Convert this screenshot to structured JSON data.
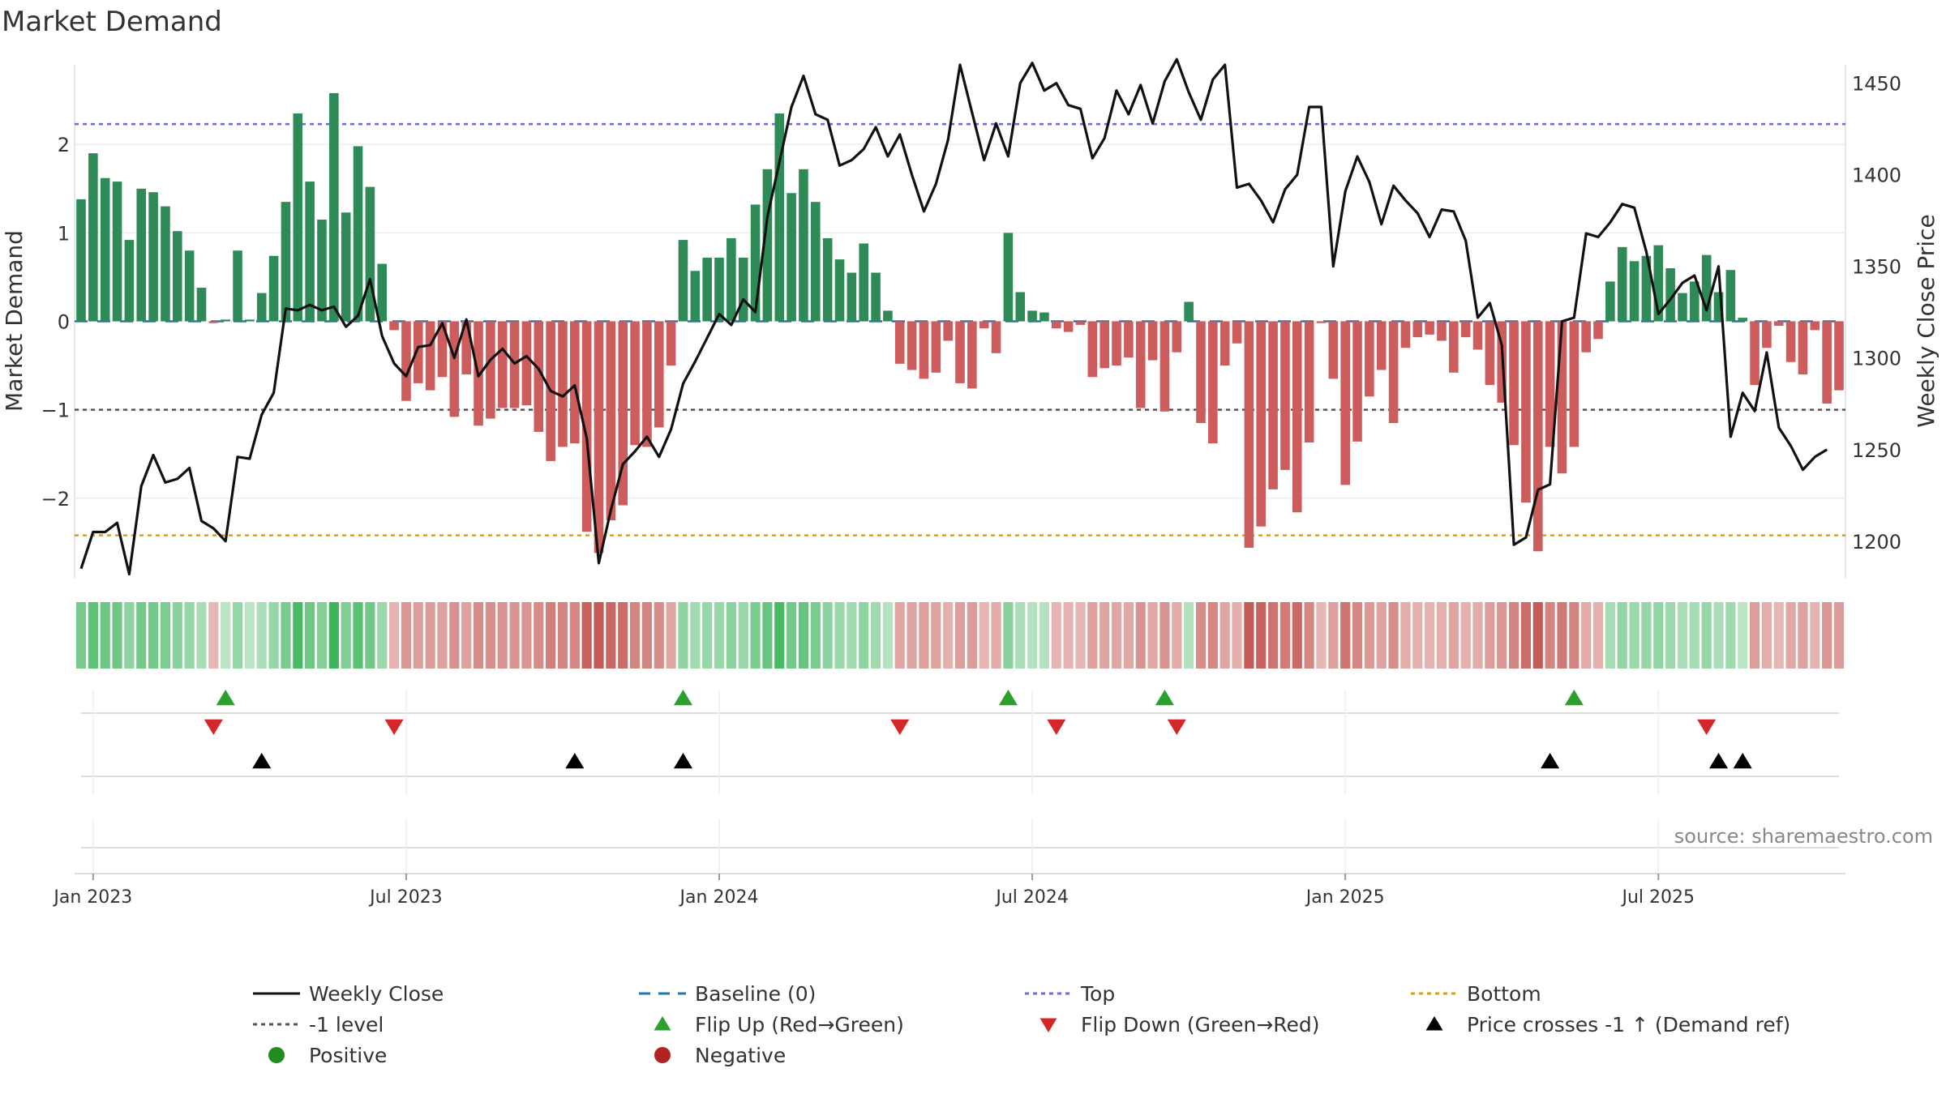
{
  "chart_data": {
    "type": "bar",
    "title": "Market Demand",
    "ylabel": "Market Demand",
    "y2label": "Weekly Close Price",
    "source": "source: sharemaestro.com",
    "ylim": [
      -2.9,
      2.9
    ],
    "y2lim": [
      1180,
      1460
    ],
    "y_ticks": [
      2,
      1,
      0,
      -1,
      -2
    ],
    "y_tick_labels": [
      "2",
      "1",
      "0",
      "−1",
      "−2"
    ],
    "y2_ticks": [
      1450,
      1400,
      1350,
      1300,
      1250,
      1200
    ],
    "x_ticks": [
      {
        "label": "Jan 2023",
        "index": 1
      },
      {
        "label": "Jul 2023",
        "index": 27
      },
      {
        "label": "Jan 2024",
        "index": 53
      },
      {
        "label": "Jul 2024",
        "index": 79
      },
      {
        "label": "Jan 2025",
        "index": 105
      },
      {
        "label": "Jul 2025",
        "index": 131
      }
    ],
    "reference_lines": {
      "baseline": 0,
      "minus_one": -1,
      "top": 2.23,
      "bottom": -2.42
    },
    "colors": {
      "positive": "#2e8b57",
      "negative": "#cd5c5c",
      "price": "#111111",
      "baseline": "#1f77b4",
      "level": "#555555",
      "top": "#6a6ad8",
      "bottom": "#d4a017",
      "flip_up": "#2ca02c",
      "flip_down": "#d62728",
      "cross": "#000000",
      "legend_positive": "#228b22",
      "legend_negative": "#b22222"
    },
    "demand": [
      1.38,
      1.9,
      1.62,
      1.58,
      0.92,
      1.5,
      1.46,
      1.3,
      1.02,
      0.8,
      0.38,
      -0.02,
      0.02,
      0.8,
      0.02,
      0.32,
      0.74,
      1.35,
      2.35,
      1.58,
      1.15,
      2.58,
      1.23,
      1.98,
      1.52,
      0.65,
      -0.1,
      -0.9,
      -0.7,
      -0.78,
      -0.63,
      -1.08,
      -0.6,
      -1.18,
      -1.1,
      -0.98,
      -0.98,
      -0.95,
      -1.25,
      -1.58,
      -1.42,
      -1.38,
      -2.38,
      -2.62,
      -2.25,
      -2.08,
      -1.4,
      -1.42,
      -1.2,
      -0.5,
      0.92,
      0.57,
      0.72,
      0.72,
      0.94,
      0.72,
      1.32,
      1.72,
      2.35,
      1.45,
      1.72,
      1.35,
      0.94,
      0.7,
      0.55,
      0.88,
      0.55,
      0.12,
      -0.48,
      -0.55,
      -0.65,
      -0.58,
      -0.22,
      -0.7,
      -0.76,
      -0.08,
      -0.36,
      1.0,
      0.33,
      0.12,
      0.1,
      -0.08,
      -0.12,
      -0.04,
      -0.63,
      -0.53,
      -0.5,
      -0.41,
      -0.98,
      -0.44,
      -1.02,
      -0.35,
      0.22,
      -1.15,
      -1.38,
      -0.5,
      -0.25,
      -2.56,
      -2.32,
      -1.9,
      -1.68,
      -2.16,
      -1.37,
      -0.02,
      -0.65,
      -1.85,
      -1.36,
      -0.85,
      -0.55,
      -1.15,
      -0.3,
      -0.18,
      -0.15,
      -0.22,
      -0.58,
      -0.18,
      -0.32,
      -0.72,
      -0.92,
      -1.4,
      -2.05,
      -2.6,
      -1.42,
      -1.72,
      -1.42,
      -0.35,
      -0.2,
      0.45,
      0.84,
      0.68,
      0.74,
      0.86,
      0.6,
      0.32,
      0.45,
      0.75,
      0.33,
      0.58,
      0.04,
      -0.72,
      -0.3,
      -0.05,
      -0.46,
      -0.6,
      -0.1,
      -0.93,
      -0.78
    ],
    "weekly_close": [
      1185,
      1205,
      1205,
      1210,
      1182,
      1230,
      1247,
      1232,
      1234,
      1240,
      1211,
      1207,
      1200,
      1246,
      1245,
      1269,
      1281,
      1327,
      1326,
      1329,
      1326,
      1328,
      1317,
      1323,
      1343,
      1312,
      1297,
      1290,
      1306,
      1307,
      1319,
      1300,
      1321,
      1290,
      1299,
      1305,
      1297,
      1301,
      1294,
      1282,
      1279,
      1285,
      1256,
      1188,
      1217,
      1242,
      1249,
      1257,
      1246,
      1261,
      1286,
      1298,
      1311,
      1324,
      1318,
      1332,
      1325,
      1377,
      1407,
      1437,
      1454,
      1433,
      1430,
      1405,
      1408,
      1414,
      1426,
      1410,
      1422,
      1400,
      1380,
      1395,
      1419,
      1460,
      1434,
      1408,
      1428,
      1410,
      1450,
      1461,
      1446,
      1450,
      1438,
      1436,
      1409,
      1420,
      1446,
      1433,
      1449,
      1428,
      1451,
      1463,
      1445,
      1430,
      1452,
      1460,
      1393,
      1395,
      1386,
      1374,
      1392,
      1400,
      1437,
      1437,
      1350,
      1391,
      1410,
      1396,
      1373,
      1394,
      1386,
      1379,
      1366,
      1381,
      1380,
      1364,
      1322,
      1330,
      1307,
      1198,
      1202,
      1228,
      1231,
      1320,
      1322,
      1368,
      1366,
      1374,
      1384,
      1382,
      1358,
      1324,
      1332,
      1341,
      1345,
      1326,
      1350,
      1257,
      1281,
      1271,
      1303,
      1262,
      1252,
      1239,
      1246,
      1250
    ],
    "flip_up": [
      12,
      50,
      77,
      90,
      124
    ],
    "flip_down": [
      11,
      26,
      68,
      81,
      91,
      135
    ],
    "price_crosses": [
      15,
      41,
      50,
      122,
      136,
      138
    ],
    "legend": [
      {
        "label": "Weekly Close",
        "marker": "solid-line"
      },
      {
        "label": "Baseline (0)",
        "marker": "dashed-line"
      },
      {
        "label": "Top",
        "marker": "dotted-line"
      },
      {
        "label": "Bottom",
        "marker": "dotted-line"
      },
      {
        "label": "-1 level",
        "marker": "dotted-line"
      },
      {
        "label": "Flip Up (Red→Green)",
        "marker": "triangle-up"
      },
      {
        "label": "Flip Down (Green→Red)",
        "marker": "triangle-down"
      },
      {
        "label": "Price crosses -1 ↑ (Demand ref)",
        "marker": "triangle-up"
      },
      {
        "label": "Positive",
        "marker": "circle"
      },
      {
        "label": "Negative",
        "marker": "circle"
      }
    ]
  }
}
